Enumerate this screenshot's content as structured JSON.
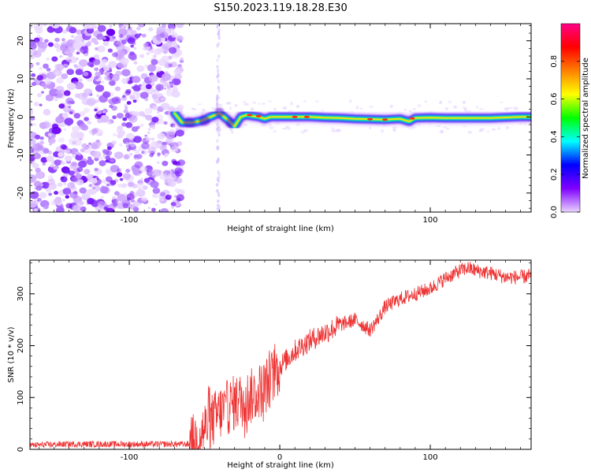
{
  "title": "S150.2023.119.18.28.E30",
  "chart_data": [
    {
      "type": "heatmap",
      "xlabel": "Height of straight line (km)",
      "ylabel": "Frequency (Hz)",
      "xlim": [
        -166,
        167
      ],
      "ylim": [
        -25,
        24.5
      ],
      "xticks": [
        -100,
        0,
        100
      ],
      "xtick_labels": [
        "-100",
        "",
        "100"
      ],
      "yticks": [
        -20,
        -10,
        0,
        10,
        20
      ],
      "ytick_labels": [
        "-20",
        "-10",
        "0",
        "10",
        "20"
      ],
      "colorbar": {
        "label": "Normalized spectral amplitude",
        "range": [
          0,
          1
        ],
        "ticks": [
          0.0,
          0.2,
          0.4,
          0.6,
          0.8
        ],
        "tick_labels": [
          "0.0",
          "0.2",
          "0.4",
          "0.6",
          "0.8"
        ],
        "colors": [
          "#e8d4ff",
          "#8000ff",
          "#0000ff",
          "#00ffff",
          "#00ff00",
          "#ffff00",
          "#ff8000",
          "#ff0000",
          "#ff0088"
        ]
      },
      "ridge": {
        "x": [
          -70,
          -65,
          -58,
          -52,
          -46,
          -40,
          -34,
          -30,
          -26,
          -22,
          -18,
          -14,
          -10,
          -6,
          -2,
          0,
          10,
          20,
          30,
          40,
          50,
          60,
          70,
          80,
          86,
          90,
          100,
          110,
          120,
          140,
          160,
          167
        ],
        "freq": [
          1.0,
          -1.5,
          -1.5,
          -1.0,
          0.0,
          1.0,
          -1.0,
          -2.5,
          0.0,
          0.5,
          0.2,
          0.0,
          -0.5,
          0.0,
          0.0,
          0.0,
          0.0,
          0.0,
          -0.2,
          -0.3,
          -0.5,
          -0.6,
          -0.7,
          -0.5,
          -1.2,
          -0.3,
          -0.2,
          -0.3,
          -0.3,
          -0.3,
          0.0,
          0.0
        ]
      },
      "noise_region_x": [
        -166,
        -68
      ]
    },
    {
      "type": "line",
      "xlabel": "Height of straight line (km)",
      "ylabel": "SNR (10 * v/v)",
      "xlim": [
        -166,
        167
      ],
      "ylim": [
        0,
        365
      ],
      "xticks": [
        -100,
        0,
        100
      ],
      "xtick_labels": [
        "-100",
        "0",
        "100"
      ],
      "yticks": [
        0,
        100,
        200,
        300
      ],
      "ytick_labels": [
        "0",
        "100",
        "200",
        "300"
      ],
      "color": "#ee3333",
      "series_x": [
        -166,
        -140,
        -120,
        -100,
        -80,
        -60,
        -55,
        -50,
        -45,
        -40,
        -35,
        -30,
        -25,
        -20,
        -15,
        -10,
        -5,
        0,
        10,
        20,
        30,
        40,
        50,
        55,
        60,
        65,
        70,
        80,
        90,
        100,
        110,
        120,
        125,
        130,
        140,
        150,
        160,
        167
      ],
      "series_y": [
        8,
        10,
        10,
        10,
        10,
        10,
        20,
        40,
        55,
        70,
        80,
        90,
        95,
        100,
        110,
        120,
        140,
        160,
        190,
        210,
        225,
        240,
        250,
        240,
        230,
        250,
        275,
        290,
        300,
        310,
        330,
        345,
        350,
        345,
        340,
        332,
        332,
        335
      ]
    }
  ]
}
